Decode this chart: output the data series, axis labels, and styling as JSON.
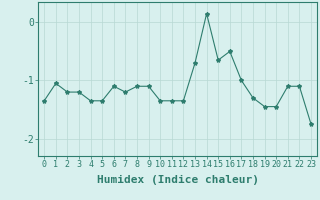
{
  "x": [
    0,
    1,
    2,
    3,
    4,
    5,
    6,
    7,
    8,
    9,
    10,
    11,
    12,
    13,
    14,
    15,
    16,
    17,
    18,
    19,
    20,
    21,
    22,
    23
  ],
  "y": [
    -1.35,
    -1.05,
    -1.2,
    -1.2,
    -1.35,
    -1.35,
    -1.1,
    -1.2,
    -1.1,
    -1.1,
    -1.35,
    -1.35,
    -1.35,
    -0.7,
    0.15,
    -0.65,
    -0.5,
    -1.0,
    -1.3,
    -1.45,
    -1.45,
    -1.1,
    -1.1,
    -1.75
  ],
  "line_color": "#2e7d6e",
  "marker": "*",
  "marker_size": 3,
  "bg_color": "#d8f0ee",
  "grid_color": "#b8d8d4",
  "axis_color": "#2e7d6e",
  "xlabel": "Humidex (Indice chaleur)",
  "ylim": [
    -2.3,
    0.35
  ],
  "xlim": [
    -0.5,
    23.5
  ],
  "yticks": [
    0,
    -1,
    -2
  ],
  "xtick_labels": [
    "0",
    "1",
    "2",
    "3",
    "4",
    "5",
    "6",
    "7",
    "8",
    "9",
    "10",
    "11",
    "12",
    "13",
    "14",
    "15",
    "16",
    "17",
    "18",
    "19",
    "20",
    "21",
    "22",
    "23"
  ],
  "label_fontsize": 7,
  "tick_fontsize": 6
}
